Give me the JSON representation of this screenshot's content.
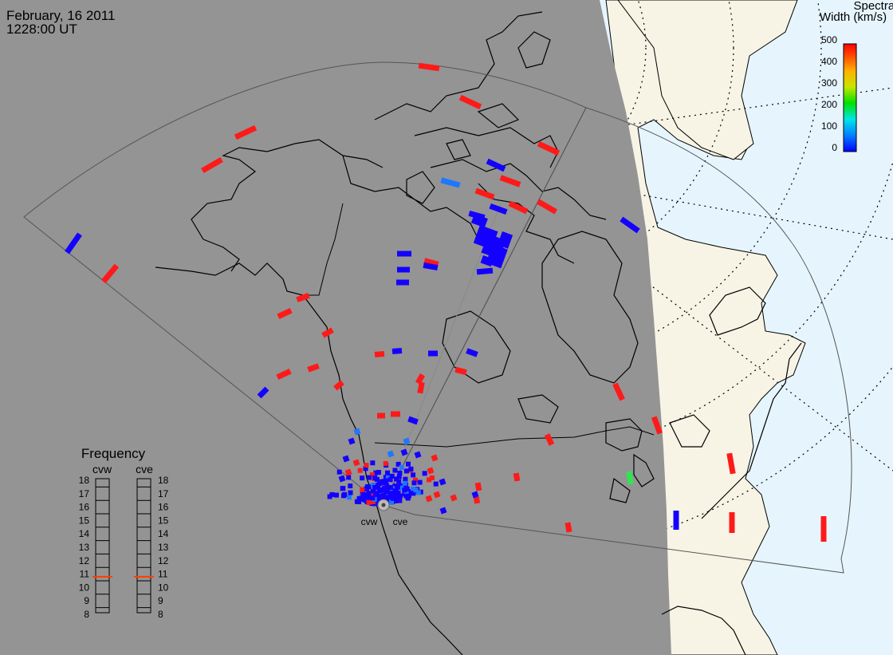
{
  "header": {
    "date": "February, 16 2011",
    "time": "1228:00 UT"
  },
  "colorbar": {
    "title_line1": "Spectral",
    "title_line2": "Width (km/s)",
    "ticks": [
      "500",
      "400",
      "300",
      "200",
      "100",
      "0"
    ],
    "min": 0,
    "max": 500
  },
  "frequency_panel": {
    "title": "Frequency",
    "left_label": "cvw",
    "right_label": "cve",
    "scale": [
      "18",
      "17",
      "16",
      "15",
      "14",
      "13",
      "12",
      "11",
      "10",
      "9",
      "8"
    ],
    "cvw_value": 10.8,
    "cve_value": 10.8
  },
  "radars": {
    "west": "cvw",
    "east": "cve"
  },
  "colors": {
    "night": "#949494",
    "day_land": "#f7f4e6",
    "day_ocean": "#e6f5fd",
    "low_width": "#1400ff",
    "mid_low_width": "#1e78ff",
    "high_width": "#ff1a1a",
    "green_width": "#2ee650"
  },
  "chart_data": {
    "type": "map",
    "measurement": "Spectral Width (km/s)",
    "echo_counts": {
      "red_high_width": "majority of distant echoes",
      "blue_low_width": "concentrated near radar and Canadian Arctic"
    }
  }
}
